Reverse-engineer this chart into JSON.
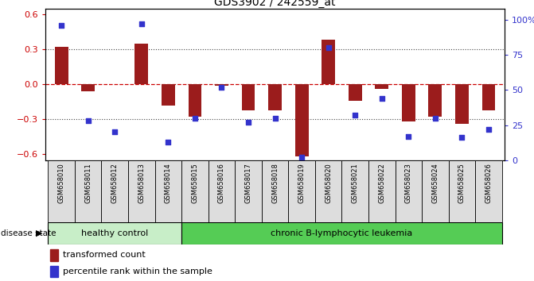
{
  "title": "GDS3902 / 242559_at",
  "samples": [
    "GSM658010",
    "GSM658011",
    "GSM658012",
    "GSM658013",
    "GSM658014",
    "GSM658015",
    "GSM658016",
    "GSM658017",
    "GSM658018",
    "GSM658019",
    "GSM658020",
    "GSM658021",
    "GSM658022",
    "GSM658023",
    "GSM658024",
    "GSM658025",
    "GSM658026"
  ],
  "bar_values": [
    0.32,
    -0.06,
    0.0,
    0.35,
    -0.18,
    -0.28,
    -0.01,
    -0.22,
    -0.22,
    -0.62,
    0.38,
    -0.14,
    -0.04,
    -0.32,
    -0.28,
    -0.34,
    -0.22
  ],
  "dot_values_pct": [
    96,
    28,
    20,
    97,
    13,
    30,
    52,
    27,
    30,
    2,
    80,
    32,
    44,
    17,
    30,
    16,
    22
  ],
  "ylim_left": [
    -0.65,
    0.65
  ],
  "ylim_right": [
    0,
    108
  ],
  "yticks_left": [
    -0.6,
    -0.3,
    0.0,
    0.3,
    0.6
  ],
  "yticks_right": [
    0,
    25,
    50,
    75,
    100
  ],
  "ytick_labels_right": [
    "0",
    "25",
    "50",
    "75",
    "100%"
  ],
  "group1_label": "healthy control",
  "group2_label": "chronic B-lymphocytic leukemia",
  "group1_count": 5,
  "group2_count": 12,
  "bar_color": "#9b1c1c",
  "dot_color": "#3333cc",
  "group1_bg": "#c8eec8",
  "group2_bg": "#55cc55",
  "disease_state_label": "disease state",
  "legend_bar_label": "transformed count",
  "legend_dot_label": "percentile rank within the sample",
  "hline_color": "#cc0000",
  "grid_color": "#444444",
  "bar_width": 0.5,
  "sample_cell_bg": "#dddddd"
}
